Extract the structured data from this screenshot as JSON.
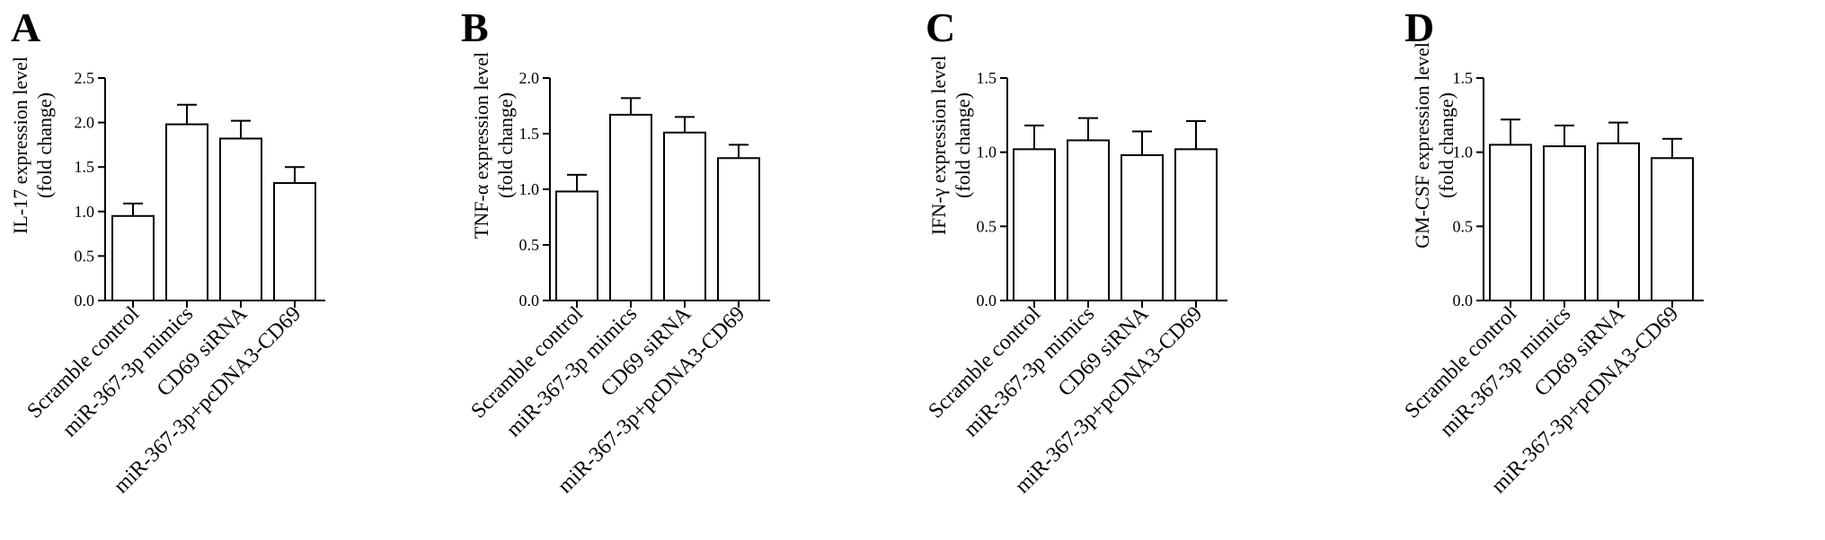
{
  "figure": {
    "panels": [
      "A",
      "B",
      "C",
      "D"
    ]
  },
  "chart_data": [
    {
      "panel": "A",
      "type": "bar",
      "categories": [
        "Scramble control",
        "miR-367-3p mimics",
        "CD69 siRNA",
        "miR-367-3p+pcDNA3-CD69"
      ],
      "values": [
        0.95,
        1.98,
        1.82,
        1.32
      ],
      "errors": [
        0.14,
        0.22,
        0.2,
        0.18
      ],
      "ylabel_line1": "IL-17 expression level",
      "ylabel_line2": "(fold change)",
      "ylim": [
        0,
        2.5
      ],
      "yticks": [
        0.0,
        0.5,
        1.0,
        1.5,
        2.0,
        2.5
      ],
      "ytick_labels": [
        "0.0",
        "0.5",
        "1.0",
        "1.5",
        "2.0",
        "2.5"
      ]
    },
    {
      "panel": "B",
      "type": "bar",
      "categories": [
        "Scramble control",
        "miR-367-3p mimics",
        "CD69 siRNA",
        "miR-367-3p+pcDNA3-CD69"
      ],
      "values": [
        0.98,
        1.67,
        1.51,
        1.28
      ],
      "errors": [
        0.15,
        0.15,
        0.14,
        0.12
      ],
      "ylabel_line1": "TNF-α  expression level",
      "ylabel_line2": "(fold change)",
      "ylim": [
        0,
        2.0
      ],
      "yticks": [
        0.0,
        0.5,
        1.0,
        1.5,
        2.0
      ],
      "ytick_labels": [
        "0.0",
        "0.5",
        "1.0",
        "1.5",
        "2.0"
      ]
    },
    {
      "panel": "C",
      "type": "bar",
      "categories": [
        "Scramble control",
        "miR-367-3p mimics",
        "CD69 siRNA",
        "miR-367-3p+pcDNA3-CD69"
      ],
      "values": [
        1.02,
        1.08,
        0.98,
        1.02
      ],
      "errors": [
        0.16,
        0.15,
        0.16,
        0.19
      ],
      "ylabel_line1": "IFN-γ  expression level",
      "ylabel_line2": "(fold change)",
      "ylim": [
        0,
        1.5
      ],
      "yticks": [
        0.0,
        0.5,
        1.0,
        1.5
      ],
      "ytick_labels": [
        "0.0",
        "0.5",
        "1.0",
        "1.5"
      ]
    },
    {
      "panel": "D",
      "type": "bar",
      "categories": [
        "Scramble control",
        "miR-367-3p mimics",
        "CD69 siRNA",
        "miR-367-3p+pcDNA3-CD69"
      ],
      "values": [
        1.05,
        1.04,
        1.06,
        0.96
      ],
      "errors": [
        0.17,
        0.14,
        0.14,
        0.13
      ],
      "ylabel_line1": "GM-CSF expression level",
      "ylabel_line2": "(fold change)",
      "ylim": [
        0,
        1.5
      ],
      "yticks": [
        0.0,
        0.5,
        1.0,
        1.5
      ],
      "ytick_labels": [
        "0.0",
        "0.5",
        "1.0",
        "1.5"
      ]
    }
  ]
}
